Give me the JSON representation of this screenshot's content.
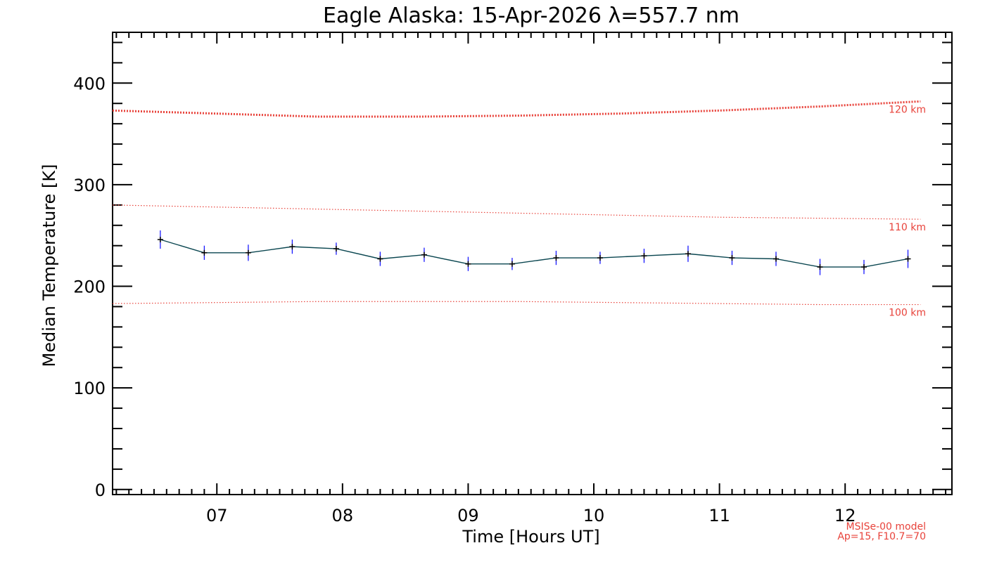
{
  "chart_data": {
    "type": "line",
    "title": "Eagle Alaska: 15-Apr-2026 λ=557.7 nm",
    "xlabel": "Time [Hours UT]",
    "ylabel": "Median Temperature [K]",
    "xlim": [
      6.17,
      12.85
    ],
    "ylim": [
      -5,
      450
    ],
    "x_ticks": [
      7,
      8,
      9,
      10,
      11,
      12
    ],
    "x_tick_labels": [
      "07",
      "08",
      "09",
      "10",
      "11",
      "12"
    ],
    "y_ticks": [
      0,
      100,
      200,
      300,
      400
    ],
    "y_tick_labels": [
      "0",
      "100",
      "200",
      "300",
      "400"
    ],
    "series": [
      {
        "name": "Median Temperature",
        "color": "#0a4650",
        "marker_color": "#000000",
        "errorbar_color": "#1a1aff",
        "x": [
          6.55,
          6.9,
          7.25,
          7.6,
          7.95,
          8.3,
          8.65,
          9.0,
          9.35,
          9.7,
          10.05,
          10.4,
          10.75,
          11.1,
          11.45,
          11.8,
          12.15,
          12.5
        ],
        "values": [
          246,
          233,
          233,
          239,
          237,
          227,
          231,
          222,
          222,
          228,
          228,
          230,
          232,
          228,
          227,
          219,
          219,
          227
        ],
        "errors": [
          9,
          7,
          8,
          7,
          6,
          7,
          7,
          7,
          6,
          7,
          6,
          7,
          8,
          7,
          7,
          8,
          7,
          9
        ]
      }
    ],
    "model_curves": [
      {
        "label": "120 km",
        "color": "#e8423a",
        "x": [
          6.17,
          7.0,
          7.8,
          8.6,
          9.4,
          10.2,
          11.0,
          11.8,
          12.6
        ],
        "values": [
          373,
          370,
          367,
          367,
          368,
          370,
          373,
          377,
          382
        ]
      },
      {
        "label": "110 km",
        "color": "#e8423a",
        "x": [
          6.17,
          7.0,
          7.8,
          8.6,
          9.4,
          10.2,
          11.0,
          11.8,
          12.6
        ],
        "values": [
          280,
          278,
          276,
          274,
          272,
          270,
          268,
          267,
          266
        ]
      },
      {
        "label": "100 km",
        "color": "#e8423a",
        "x": [
          6.17,
          7.0,
          7.8,
          8.6,
          9.4,
          10.2,
          11.0,
          11.8,
          12.6
        ],
        "values": [
          183,
          184,
          185,
          185,
          185,
          184,
          183,
          182,
          182
        ]
      }
    ],
    "model_note": [
      "MSISe-00 model",
      "Ap=15, F10.7=70"
    ],
    "grid": false,
    "legend": "none"
  }
}
